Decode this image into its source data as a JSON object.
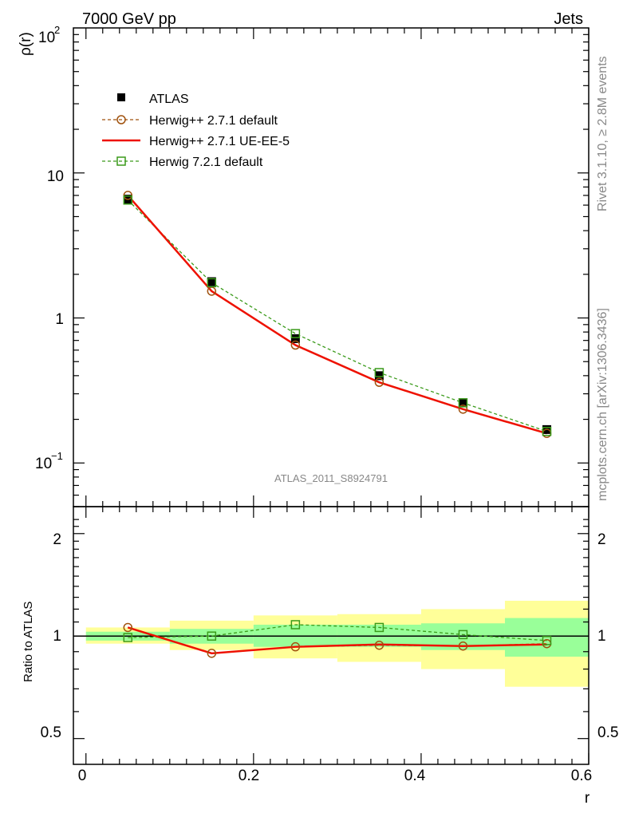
{
  "header": {
    "left_title": "7000 GeV pp",
    "right_title": "Jets"
  },
  "side": {
    "rivet": "Rivet 3.1.10, ≥ 2.8M events",
    "mcplots": "mcplots.cern.ch [arXiv:1306.3436]"
  },
  "watermark": "ATLAS_2011_S8924791",
  "axis_labels": {
    "main_y": "ρ(r)",
    "ratio_y": "Ratio to ATLAS",
    "x": "r"
  },
  "tick_labels": {
    "main_y": {
      "base": "10",
      "exp_100": "2",
      "exp_0p1": "−1",
      "ten": "10",
      "one": "1"
    },
    "ratio_y": [
      "2",
      "1",
      "0.5"
    ],
    "x": [
      "0",
      "0.2",
      "0.4",
      "0.6"
    ]
  },
  "legend": [
    {
      "label": "ATLAS",
      "color": "#000000",
      "style": "marker-square-filled"
    },
    {
      "label": "Herwig++ 2.7.1 default",
      "color": "#a0520e",
      "style": "dashed-circle"
    },
    {
      "label": "Herwig++ 2.7.1 UE-EE-5",
      "color": "#ee1100",
      "style": "solid"
    },
    {
      "label": "Herwig 7.2.1 default",
      "color": "#3a9a1a",
      "style": "dashed-open-square"
    }
  ],
  "chart_data": [
    {
      "type": "line",
      "title": "7000 GeV pp Jets",
      "xlabel": "r",
      "ylabel": "ρ(r)",
      "yscale": "log",
      "xlim": [
        -0.015,
        0.6
      ],
      "ylim": [
        0.05,
        100
      ],
      "x": [
        0.05,
        0.15,
        0.25,
        0.35,
        0.45,
        0.55
      ],
      "series": [
        {
          "name": "ATLAS",
          "values": [
            6.6,
            1.78,
            0.72,
            0.4,
            0.26,
            0.17
          ]
        },
        {
          "name": "Herwig++ 2.7.1 default",
          "values": [
            7.0,
            1.53,
            0.65,
            0.36,
            0.235,
            0.16
          ]
        },
        {
          "name": "Herwig++ 2.7.1 UE-EE-5",
          "values": [
            7.0,
            1.53,
            0.65,
            0.36,
            0.235,
            0.16
          ]
        },
        {
          "name": "Herwig 7.2.1 default",
          "values": [
            6.5,
            1.75,
            0.78,
            0.42,
            0.26,
            0.165
          ]
        }
      ]
    },
    {
      "type": "line",
      "title": "Ratio to ATLAS",
      "xlabel": "r",
      "ylabel": "Ratio to ATLAS",
      "yscale": "log",
      "xlim": [
        -0.015,
        0.6
      ],
      "ylim": [
        0.42,
        2.4
      ],
      "x": [
        0.05,
        0.15,
        0.25,
        0.35,
        0.45,
        0.55
      ],
      "bins": [
        [
          0.0,
          0.1
        ],
        [
          0.1,
          0.2
        ],
        [
          0.2,
          0.3
        ],
        [
          0.3,
          0.4
        ],
        [
          0.4,
          0.5
        ],
        [
          0.5,
          0.6
        ]
      ],
      "band_inner": [
        [
          0.97,
          1.03
        ],
        [
          0.95,
          1.05
        ],
        [
          0.93,
          1.08
        ],
        [
          0.93,
          1.08
        ],
        [
          0.91,
          1.09
        ],
        [
          0.87,
          1.13
        ]
      ],
      "band_outer": [
        [
          0.95,
          1.06
        ],
        [
          0.91,
          1.11
        ],
        [
          0.86,
          1.15
        ],
        [
          0.84,
          1.16
        ],
        [
          0.8,
          1.2
        ],
        [
          0.71,
          1.27
        ]
      ],
      "reference": 1,
      "series": [
        {
          "name": "Herwig++ 2.7.1 default",
          "values": [
            1.06,
            0.89,
            0.93,
            0.94,
            0.935,
            0.95
          ]
        },
        {
          "name": "Herwig++ 2.7.1 UE-EE-5",
          "values": [
            1.06,
            0.89,
            0.93,
            0.945,
            0.935,
            0.945
          ]
        },
        {
          "name": "Herwig 7.2.1 default",
          "values": [
            0.99,
            1.0,
            1.08,
            1.06,
            1.01,
            0.97
          ]
        }
      ]
    }
  ]
}
